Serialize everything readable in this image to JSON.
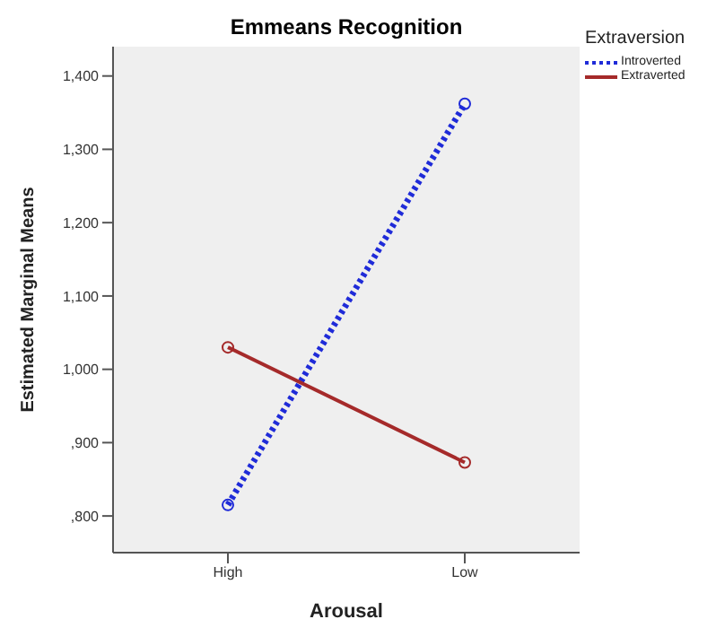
{
  "chart_data": {
    "type": "line",
    "title": "Emmeans Recognition",
    "xlabel": "Arousal",
    "ylabel": "Estimated Marginal Means",
    "legend_title": "Extraversion",
    "categories": [
      "High",
      "Low"
    ],
    "series": [
      {
        "name": "Introverted",
        "color": "#1f2bd8",
        "values": [
          815,
          1362
        ],
        "line_style": "dotted"
      },
      {
        "name": "Extraverted",
        "color": "#a52a2a",
        "values": [
          1030,
          873
        ],
        "line_style": "solid"
      }
    ],
    "ylim": [
      750,
      1440
    ],
    "yticks": [
      {
        "value": 800,
        "label": ",800"
      },
      {
        "value": 900,
        "label": ",900"
      },
      {
        "value": 1000,
        "label": "1,000"
      },
      {
        "value": 1100,
        "label": "1,100"
      },
      {
        "value": 1200,
        "label": "1,200"
      },
      {
        "value": 1300,
        "label": "1,300"
      },
      {
        "value": 1400,
        "label": "1,400"
      }
    ],
    "grid": false,
    "legend": "top right",
    "marker": "circle"
  }
}
